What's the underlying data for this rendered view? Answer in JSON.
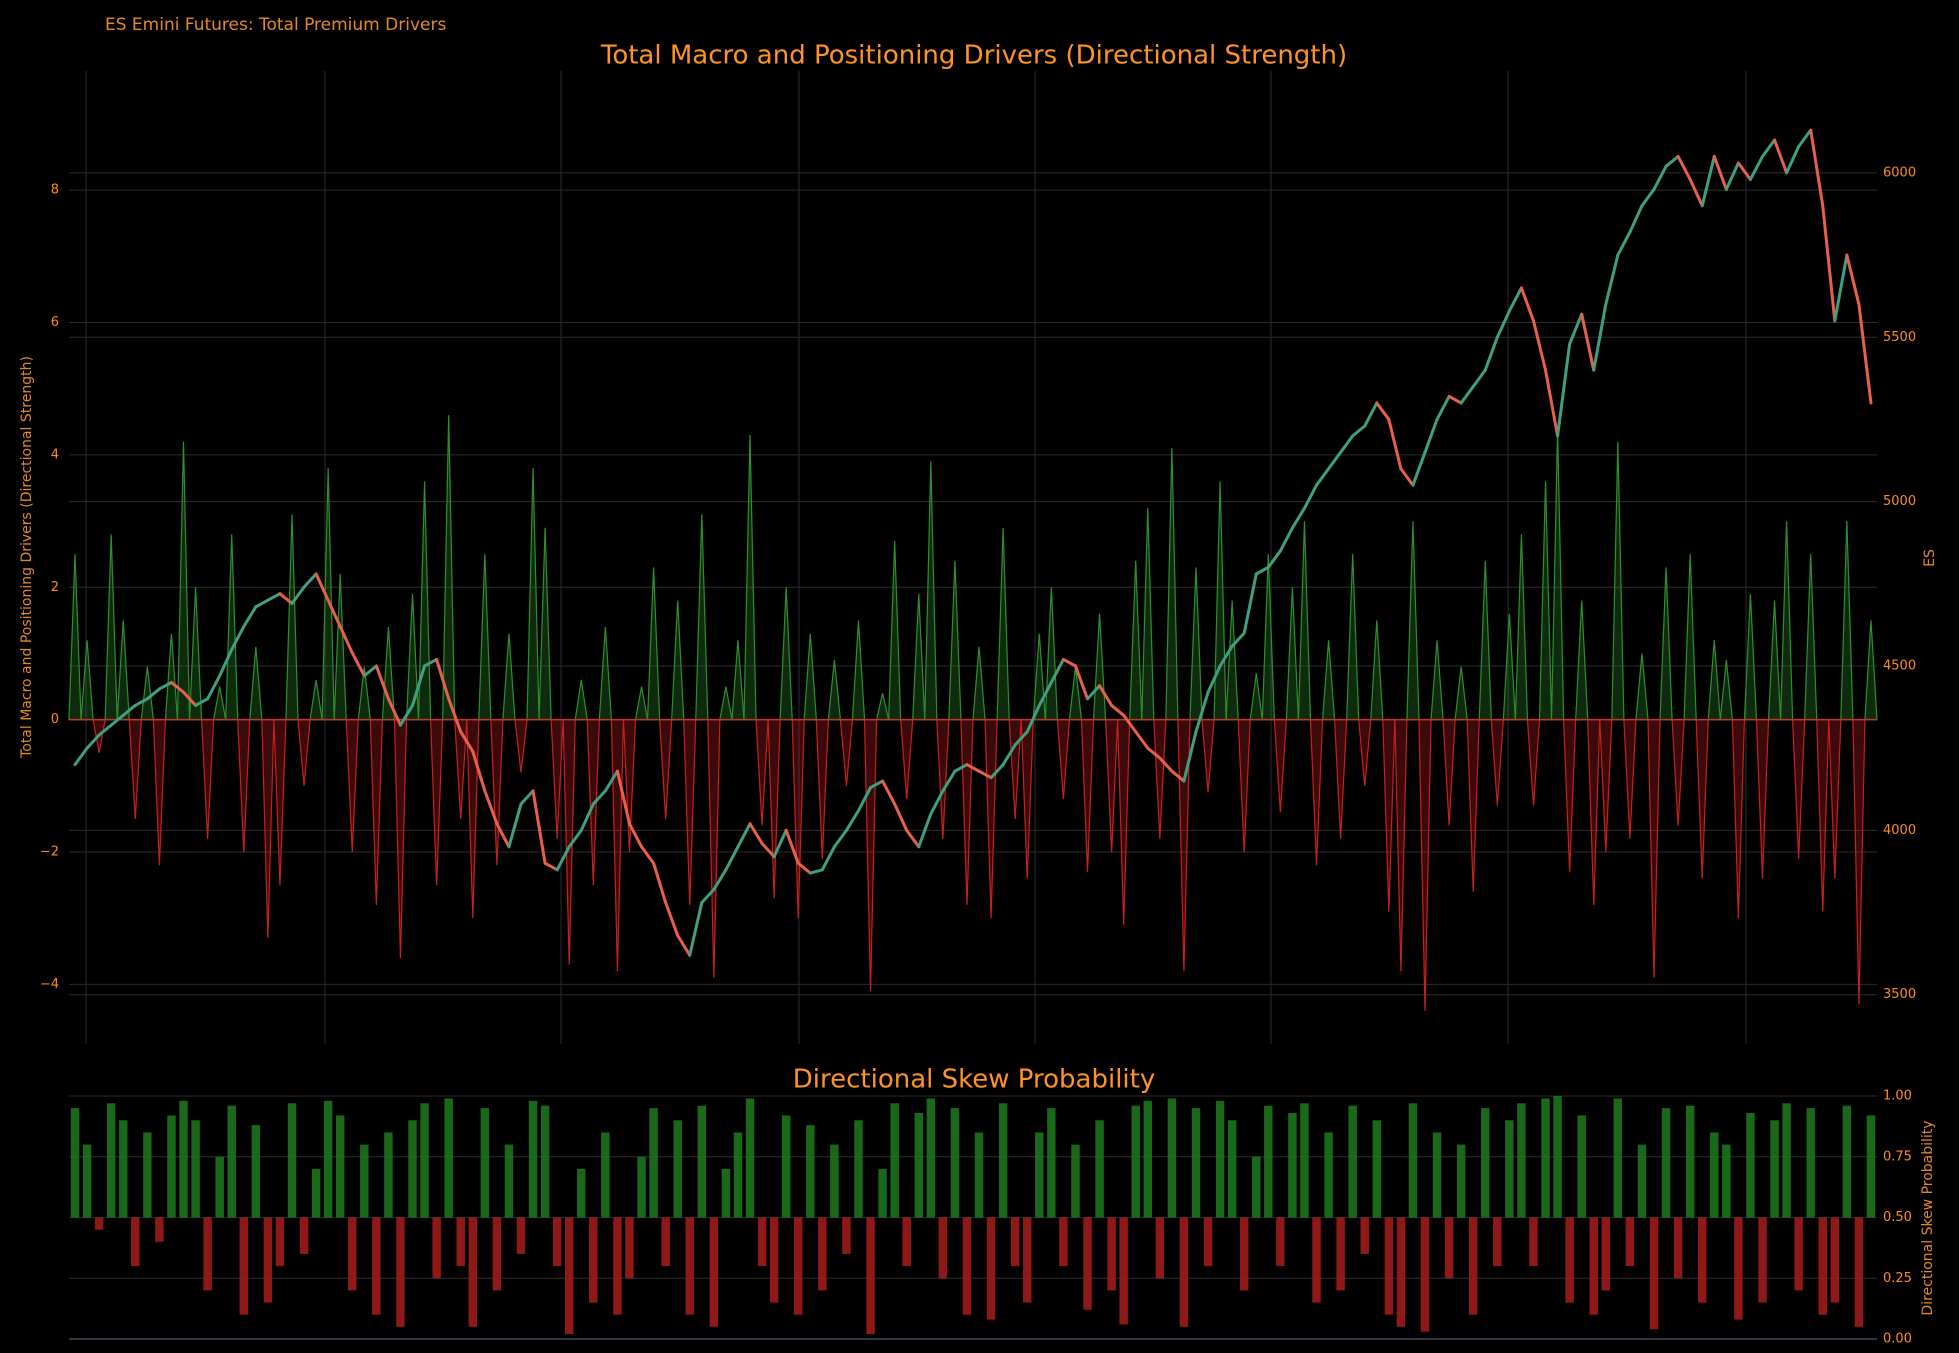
{
  "page_title": "ES Emini Futures: Total Premium Drivers",
  "chart_data": [
    {
      "type": "spike-candle",
      "title": "Total Macro and Positioning Drivers (Directional Strength)",
      "y_label": "Total Macro and Positioning Drivers (Directional Strength)",
      "y2_label": "ES",
      "ylim": [
        -4.9,
        9.8
      ],
      "yticks": [
        {
          "value": -4,
          "label": "−4"
        },
        {
          "value": -2,
          "label": "−2"
        },
        0,
        2,
        4,
        6,
        8
      ],
      "y2lim": [
        3350,
        6310
      ],
      "y2ticks": [
        3500,
        4000,
        4500,
        5000,
        5500,
        6000
      ],
      "grid": true,
      "series": [
        {
          "positive_color": "#2f8f2f",
          "negative_color": "#c62020",
          "values": [
            2.5,
            1.2,
            -0.5,
            2.8,
            1.5,
            -1.5,
            0.8,
            -2.2,
            1.3,
            4.2,
            2.0,
            -1.8,
            0.5,
            2.8,
            -2.0,
            1.1,
            -3.3,
            -2.5,
            3.1,
            -1.0,
            0.6,
            3.8,
            2.2,
            -2.0,
            0.8,
            -2.8,
            1.4,
            -3.6,
            1.9,
            3.6,
            -2.5,
            4.6,
            -1.5,
            -3.0,
            2.5,
            -2.2,
            1.3,
            -0.8,
            3.8,
            2.9,
            -1.8,
            -3.7,
            0.6,
            -2.5,
            1.4,
            -3.8,
            -2.0,
            0.5,
            2.3,
            -1.5,
            1.8,
            -2.8,
            3.1,
            -3.9,
            0.5,
            1.2,
            4.3,
            -1.6,
            -2.7,
            2.0,
            -3.0,
            1.3,
            -2.1,
            0.9,
            -1.0,
            1.5,
            -4.1,
            0.4,
            2.7,
            -1.2,
            1.9,
            3.9,
            -1.8,
            2.4,
            -2.8,
            1.1,
            -3.0,
            2.9,
            -1.5,
            -2.4,
            1.3,
            2.0,
            -1.2,
            0.8,
            -2.3,
            1.6,
            -2.0,
            -3.1,
            2.4,
            3.2,
            -1.8,
            4.1,
            -3.8,
            2.3,
            -1.1,
            3.6,
            1.8,
            -2.0,
            0.7,
            2.5,
            -1.4,
            2.0,
            3.0,
            -2.2,
            1.2,
            -1.8,
            2.5,
            -1.0,
            1.5,
            -2.9,
            -3.8,
            3.0,
            -4.4,
            1.2,
            -1.6,
            0.8,
            -2.6,
            2.4,
            -1.3,
            1.6,
            2.8,
            -1.3,
            3.6,
            4.4,
            -2.3,
            1.8,
            -2.8,
            -2.0,
            4.2,
            -1.8,
            1.0,
            -3.9,
            2.3,
            -1.6,
            2.5,
            -2.4,
            1.2,
            0.9,
            -3.0,
            1.9,
            -2.4,
            1.8,
            3.0,
            -2.1,
            2.5,
            -2.9,
            -2.4,
            3.0,
            -4.3,
            1.5
          ]
        },
        {
          "axis": "y2",
          "up_color": "#3f9f7f",
          "down_color": "#e8604c",
          "values": [
            4200,
            4250,
            4290,
            4320,
            4350,
            4380,
            4400,
            4430,
            4450,
            4420,
            4380,
            4400,
            4470,
            4550,
            4620,
            4680,
            4700,
            4720,
            4690,
            4740,
            4780,
            4700,
            4620,
            4540,
            4470,
            4500,
            4400,
            4320,
            4380,
            4500,
            4520,
            4400,
            4300,
            4240,
            4120,
            4020,
            3950,
            4080,
            4120,
            3900,
            3880,
            3950,
            4000,
            4080,
            4120,
            4180,
            4020,
            3950,
            3900,
            3780,
            3680,
            3620,
            3780,
            3820,
            3880,
            3950,
            4020,
            3960,
            3920,
            4000,
            3900,
            3870,
            3880,
            3950,
            4000,
            4060,
            4130,
            4150,
            4080,
            4000,
            3950,
            4050,
            4120,
            4180,
            4200,
            4180,
            4160,
            4200,
            4260,
            4300,
            4380,
            4450,
            4520,
            4500,
            4400,
            4440,
            4380,
            4350,
            4300,
            4250,
            4220,
            4180,
            4150,
            4300,
            4420,
            4500,
            4560,
            4600,
            4780,
            4800,
            4850,
            4920,
            4980,
            5050,
            5100,
            5150,
            5200,
            5230,
            5300,
            5250,
            5100,
            5050,
            5150,
            5250,
            5320,
            5300,
            5350,
            5400,
            5500,
            5580,
            5650,
            5550,
            5400,
            5200,
            5480,
            5570,
            5400,
            5600,
            5750,
            5820,
            5900,
            5950,
            6020,
            6050,
            5980,
            5900,
            6050,
            5950,
            6030,
            5980,
            6050,
            6100,
            6000,
            6080,
            6130,
            5900,
            5550,
            5750,
            5600,
            5300
          ]
        }
      ]
    },
    {
      "type": "bar",
      "title": "Directional Skew Probability",
      "y2_label": "Directional Skew Probability",
      "baseline": 0.5,
      "up_color": "#1e7a1e",
      "down_color": "#a81c1c",
      "ylim": [
        0,
        1
      ],
      "yticks": [
        {
          "value": 0,
          "label": "0.00"
        },
        {
          "value": 0.25,
          "label": "0.25"
        },
        {
          "value": 0.5,
          "label": "0.50"
        },
        {
          "value": 0.75,
          "label": "0.75"
        },
        {
          "value": 1,
          "label": "1.00"
        }
      ],
      "grid": true,
      "values": [
        0.95,
        0.8,
        0.45,
        0.97,
        0.9,
        0.3,
        0.85,
        0.4,
        0.92,
        0.98,
        0.9,
        0.2,
        0.75,
        0.96,
        0.1,
        0.88,
        0.15,
        0.3,
        0.97,
        0.35,
        0.7,
        0.98,
        0.92,
        0.2,
        0.8,
        0.1,
        0.85,
        0.05,
        0.9,
        0.97,
        0.25,
        0.99,
        0.3,
        0.05,
        0.95,
        0.2,
        0.8,
        0.35,
        0.98,
        0.96,
        0.3,
        0.02,
        0.7,
        0.15,
        0.85,
        0.1,
        0.25,
        0.75,
        0.95,
        0.3,
        0.9,
        0.1,
        0.96,
        0.05,
        0.7,
        0.85,
        0.99,
        0.3,
        0.15,
        0.92,
        0.1,
        0.88,
        0.2,
        0.8,
        0.35,
        0.9,
        0.02,
        0.7,
        0.97,
        0.3,
        0.93,
        0.99,
        0.25,
        0.95,
        0.1,
        0.85,
        0.08,
        0.97,
        0.3,
        0.15,
        0.85,
        0.95,
        0.3,
        0.8,
        0.12,
        0.9,
        0.2,
        0.06,
        0.96,
        0.98,
        0.25,
        0.99,
        0.05,
        0.95,
        0.3,
        0.98,
        0.9,
        0.2,
        0.75,
        0.96,
        0.3,
        0.93,
        0.97,
        0.15,
        0.85,
        0.2,
        0.96,
        0.35,
        0.9,
        0.1,
        0.05,
        0.97,
        0.03,
        0.85,
        0.25,
        0.8,
        0.1,
        0.95,
        0.3,
        0.9,
        0.97,
        0.3,
        0.99,
        1.0,
        0.15,
        0.92,
        0.1,
        0.2,
        0.99,
        0.3,
        0.8,
        0.04,
        0.95,
        0.25,
        0.96,
        0.15,
        0.85,
        0.8,
        0.08,
        0.93,
        0.15,
        0.9,
        0.97,
        0.2,
        0.95,
        0.1,
        0.15,
        0.96,
        0.05,
        0.92
      ]
    }
  ]
}
